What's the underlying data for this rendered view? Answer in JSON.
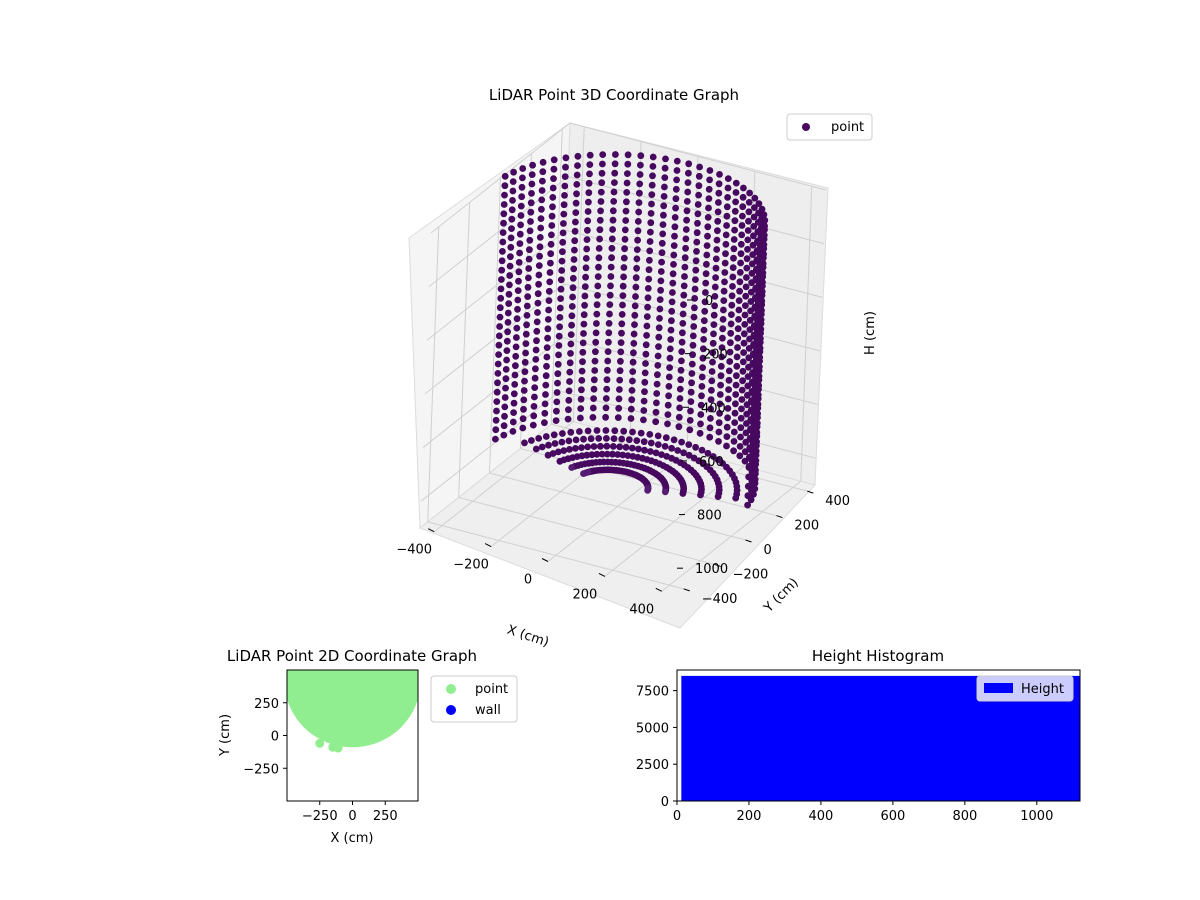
{
  "colors": {
    "point3d": "#46095f",
    "point3d_light": "#561b73",
    "point2d": "#90ee90",
    "wall": "#0000ff",
    "hist": "#0000ff",
    "pane": "#f2f2f2",
    "pane_grid": "#d0d0d0"
  },
  "chart_data": [
    {
      "type": "scatter",
      "projection": "3d",
      "title": "LiDAR Point 3D Coordinate Graph",
      "xlabel": "X (cm)",
      "ylabel": "Y (cm)",
      "zlabel": "H (cm)",
      "xticks": [
        "−400",
        "−200",
        "0",
        "200",
        "400"
      ],
      "yticks": [
        "−400",
        "−200",
        "0",
        "200",
        "400"
      ],
      "zticks": [
        "0",
        "200",
        "400",
        "600",
        "800",
        "1000"
      ],
      "xlim": [
        -450,
        450
      ],
      "ylim": [
        -450,
        450
      ],
      "zlim": [
        0,
        1100
      ],
      "z_inverted": true,
      "legend": {
        "position": "upper right",
        "entries": [
          {
            "label": "point",
            "color": "#46095f"
          }
        ]
      },
      "series": [
        {
          "name": "point",
          "shape": "half-cylinder shell (y ≥ ~−100), radius ~450",
          "theta_start_deg": 10,
          "theta_end_deg": 170,
          "theta_step_deg": 5,
          "radius": 450,
          "h_range": [
            0,
            1000
          ],
          "color": "#46095f"
        }
      ]
    },
    {
      "type": "scatter",
      "title": "LiDAR Point 2D Coordinate Graph",
      "xlabel": "X (cm)",
      "ylabel": "Y (cm)",
      "xticks": [
        "−250",
        "0",
        "250"
      ],
      "yticks": [
        "250",
        "0",
        "−250"
      ],
      "xlim": [
        -500,
        500
      ],
      "ylim": [
        -500,
        500
      ],
      "legend": {
        "position": "outside right",
        "entries": [
          {
            "label": "point",
            "color": "#90ee90"
          },
          {
            "label": "wall",
            "color": "#0000ff"
          }
        ]
      },
      "series": [
        {
          "name": "point",
          "shape": "half-disk filled region, y from ~−100 to 500",
          "color": "#90ee90"
        },
        {
          "name": "wall",
          "points": [],
          "color": "#0000ff"
        }
      ]
    },
    {
      "type": "bar",
      "title": "Height Histogram",
      "xlabel": "",
      "ylabel": "",
      "xticks": [
        "0",
        "200",
        "400",
        "600",
        "800",
        "1000"
      ],
      "yticks": [
        "0",
        "2500",
        "5000",
        "7500"
      ],
      "xlim": [
        0,
        1120
      ],
      "ylim": [
        0,
        8900
      ],
      "legend": {
        "position": "upper right",
        "entries": [
          {
            "label": "Height",
            "color": "#0000ff"
          }
        ]
      },
      "series": [
        {
          "name": "Height",
          "x_range": [
            12,
            1120
          ],
          "value": 8500,
          "color": "#0000ff"
        }
      ]
    }
  ]
}
